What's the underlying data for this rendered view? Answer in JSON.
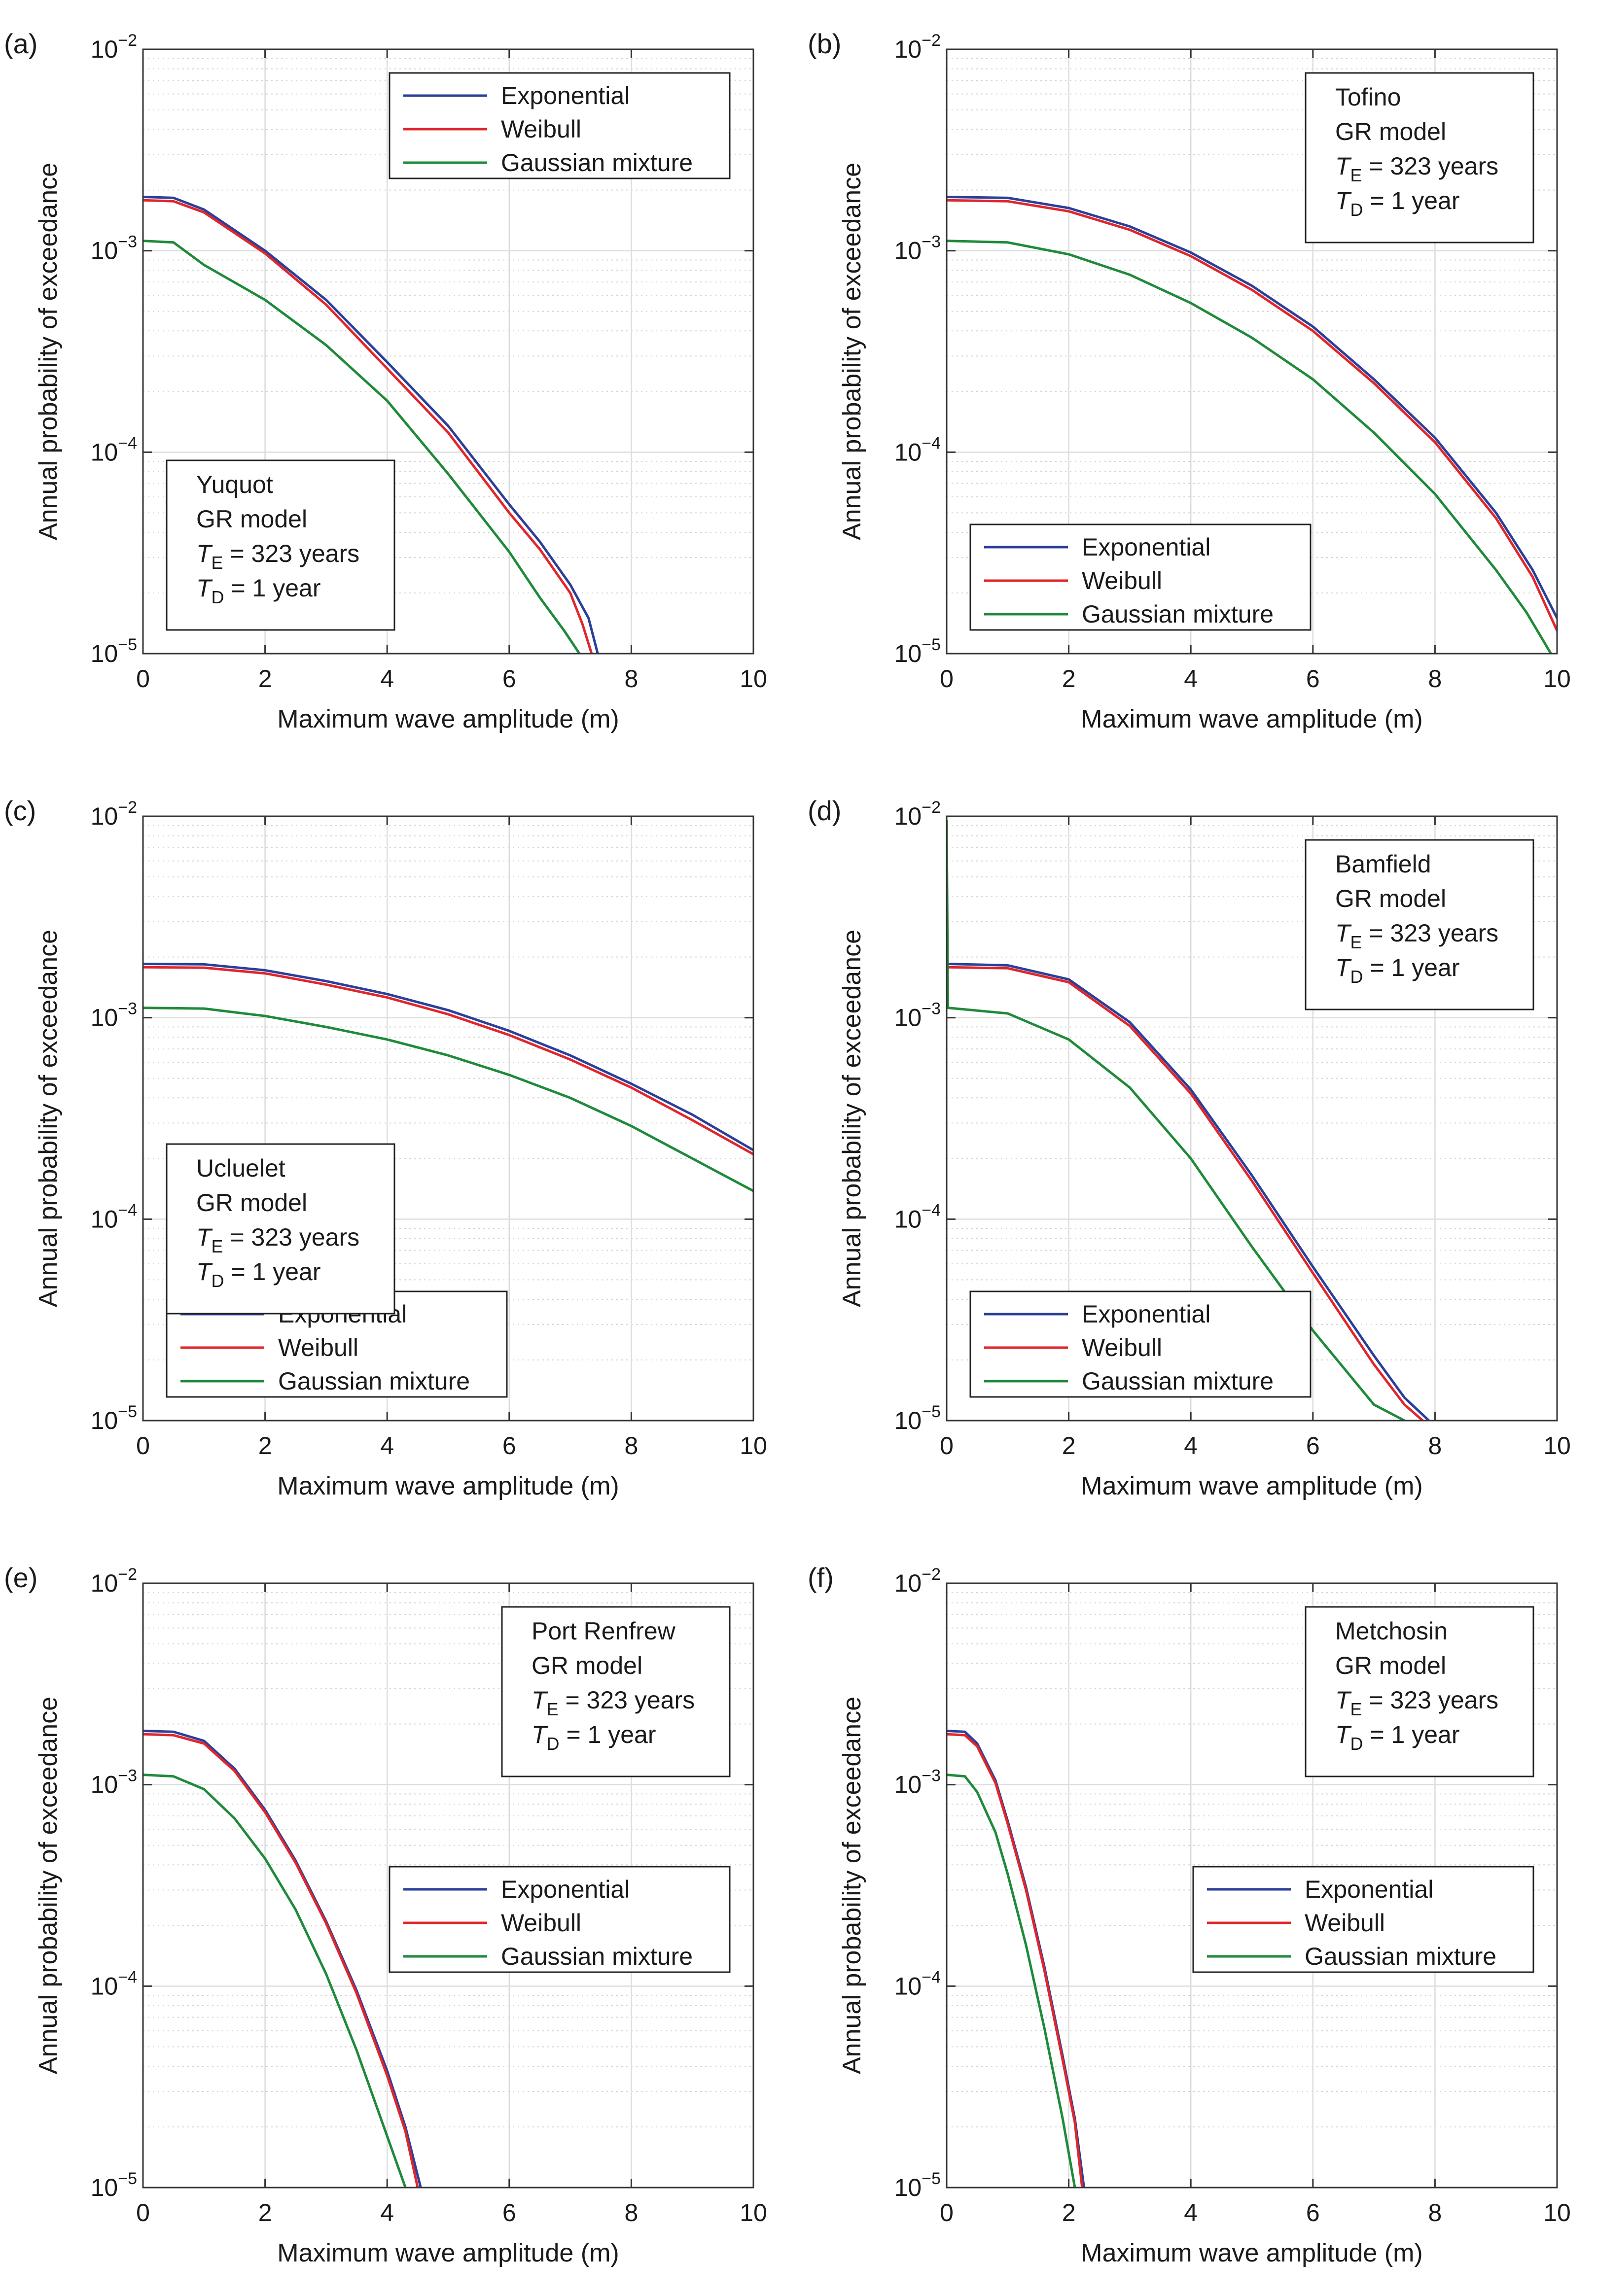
{
  "figure": {
    "x_axis_label": "Maximum wave amplitude (m)",
    "y_axis_label": "Annual probability of exceedance",
    "x_tick_labels": [
      "0",
      "2",
      "4",
      "6",
      "8",
      "10"
    ],
    "y_tick_labels": [
      {
        "base": "10",
        "exp": "−5"
      },
      {
        "base": "10",
        "exp": "−4"
      },
      {
        "base": "10",
        "exp": "−3"
      },
      {
        "base": "10",
        "exp": "−2"
      }
    ],
    "series_colors": {
      "Exponential": "#2b3f9a",
      "Weibull": "#e0262b",
      "Gaussian mixture": "#1f8a3a"
    },
    "legend_entries": [
      "Exponential",
      "Weibull",
      "Gaussian mixture"
    ],
    "model_text": "GR model",
    "te_symbol": "T",
    "te_sub": "E",
    "te_value": " = 323 years",
    "td_symbol": "T",
    "td_sub": "D",
    "td_value": " = 1 year"
  },
  "chart_data": [
    {
      "type": "line",
      "panel_label": "(a)",
      "site": "Yuquot",
      "xlabel": "Maximum wave amplitude (m)",
      "ylabel": "Annual probability of exceedance",
      "xlim": [
        0,
        10
      ],
      "ylim": [
        1e-05,
        0.01
      ],
      "yscale": "log",
      "grid": true,
      "legend_position": "top-right",
      "infobox_position": "bottom-left",
      "series": [
        {
          "name": "Exponential",
          "x": [
            0,
            0.5,
            1,
            2,
            3,
            4,
            5,
            6,
            6.5,
            7,
            7.3,
            7.45
          ],
          "y": [
            0.00185,
            0.00183,
            0.0016,
            0.001,
            0.00057,
            0.00028,
            0.000135,
            5.5e-05,
            3.6e-05,
            2.2e-05,
            1.5e-05,
            1e-05
          ]
        },
        {
          "name": "Weibull",
          "x": [
            0,
            0.5,
            1,
            2,
            3,
            4,
            5,
            6,
            6.5,
            7,
            7.2,
            7.35
          ],
          "y": [
            0.00178,
            0.00176,
            0.00155,
            0.00097,
            0.00054,
            0.00026,
            0.000125,
            5e-05,
            3.3e-05,
            2e-05,
            1.4e-05,
            1e-05
          ]
        },
        {
          "name": "Gaussian mixture",
          "x": [
            0,
            0.5,
            1,
            2,
            3,
            4,
            5,
            6,
            6.5,
            6.9,
            7.15
          ],
          "y": [
            0.00112,
            0.0011,
            0.00085,
            0.00057,
            0.00034,
            0.00018,
            7.8e-05,
            3.2e-05,
            1.9e-05,
            1.3e-05,
            1e-05
          ]
        }
      ]
    },
    {
      "type": "line",
      "panel_label": "(b)",
      "site": "Tofino",
      "xlabel": "Maximum wave amplitude (m)",
      "ylabel": "Annual probability of exceedance",
      "xlim": [
        0,
        10
      ],
      "ylim": [
        1e-05,
        0.01
      ],
      "yscale": "log",
      "grid": true,
      "legend_position": "bottom-left",
      "infobox_position": "top-right",
      "series": [
        {
          "name": "Exponential",
          "x": [
            0,
            1,
            2,
            3,
            4,
            5,
            6,
            7,
            8,
            9,
            9.6,
            10
          ],
          "y": [
            0.00185,
            0.00183,
            0.00163,
            0.00132,
            0.00098,
            0.00067,
            0.00042,
            0.00023,
            0.000118,
            5e-05,
            2.6e-05,
            1.5e-05
          ]
        },
        {
          "name": "Weibull",
          "x": [
            0,
            1,
            2,
            3,
            4,
            5,
            6,
            7,
            8,
            9,
            9.6,
            10
          ],
          "y": [
            0.00178,
            0.00176,
            0.00157,
            0.00127,
            0.00094,
            0.00064,
            0.0004,
            0.00022,
            0.000112,
            4.7e-05,
            2.4e-05,
            1.3e-05
          ]
        },
        {
          "name": "Gaussian mixture",
          "x": [
            0,
            1,
            2,
            3,
            4,
            5,
            6,
            7,
            8,
            9,
            9.5,
            9.9
          ],
          "y": [
            0.00112,
            0.0011,
            0.00096,
            0.00076,
            0.00055,
            0.00037,
            0.00023,
            0.000125,
            6.2e-05,
            2.6e-05,
            1.6e-05,
            1e-05
          ]
        }
      ]
    },
    {
      "type": "line",
      "panel_label": "(c)",
      "site": "Ucluelet",
      "xlabel": "Maximum wave amplitude (m)",
      "ylabel": "Annual probability of exceedance",
      "xlim": [
        0,
        10
      ],
      "ylim": [
        1e-05,
        0.01
      ],
      "yscale": "log",
      "grid": true,
      "legend_position": "bottom-left",
      "infobox_position": "middle-left",
      "series": [
        {
          "name": "Exponential",
          "x": [
            0,
            1,
            2,
            3,
            4,
            5,
            6,
            7,
            8,
            9,
            10
          ],
          "y": [
            0.00185,
            0.00184,
            0.00172,
            0.00152,
            0.00131,
            0.00109,
            0.00086,
            0.00065,
            0.00047,
            0.00033,
            0.00022
          ]
        },
        {
          "name": "Weibull",
          "x": [
            0,
            1,
            2,
            3,
            4,
            5,
            6,
            7,
            8,
            9,
            10
          ],
          "y": [
            0.00178,
            0.00177,
            0.00166,
            0.00146,
            0.00126,
            0.00104,
            0.00082,
            0.00062,
            0.00045,
            0.00031,
            0.00021
          ]
        },
        {
          "name": "Gaussian mixture",
          "x": [
            0,
            1,
            2,
            3,
            4,
            5,
            6,
            7,
            8,
            9,
            10
          ],
          "y": [
            0.00112,
            0.00111,
            0.00102,
            0.0009,
            0.00078,
            0.00065,
            0.00052,
            0.0004,
            0.00029,
            0.0002,
            0.000138
          ]
        }
      ]
    },
    {
      "type": "line",
      "panel_label": "(d)",
      "site": "Bamfield",
      "xlabel": "Maximum wave amplitude (m)",
      "ylabel": "Annual probability of exceedance",
      "xlim": [
        0,
        10
      ],
      "ylim": [
        1e-05,
        0.01
      ],
      "yscale": "log",
      "grid": true,
      "legend_position": "bottom-left",
      "infobox_position": "top-right",
      "series": [
        {
          "name": "Exponential",
          "x": [
            0,
            1,
            2,
            3,
            4,
            5,
            6,
            7,
            7.5,
            7.9
          ],
          "y": [
            0.00185,
            0.00182,
            0.00155,
            0.00095,
            0.00044,
            0.000165,
            5.8e-05,
            2.1e-05,
            1.3e-05,
            1e-05
          ]
        },
        {
          "name": "Weibull",
          "x": [
            0,
            1,
            2,
            3,
            4,
            5,
            6,
            7,
            7.5,
            7.8
          ],
          "y": [
            0.00178,
            0.00176,
            0.0015,
            0.00091,
            0.00042,
            0.000155,
            5.4e-05,
            1.9e-05,
            1.2e-05,
            1e-05
          ]
        },
        {
          "name": "Gaussian mixture",
          "x": [
            0,
            0.02,
            1,
            2,
            3,
            4,
            5,
            6,
            7,
            7.5
          ],
          "y": [
            0.0095,
            0.00112,
            0.00105,
            0.00078,
            0.00045,
            0.0002,
            7.3e-05,
            2.8e-05,
            1.2e-05,
            1e-05
          ]
        }
      ]
    },
    {
      "type": "line",
      "panel_label": "(e)",
      "site": "Port Renfrew",
      "xlabel": "Maximum wave amplitude (m)",
      "ylabel": "Annual probability of exceedance",
      "xlim": [
        0,
        10
      ],
      "ylim": [
        1e-05,
        0.01
      ],
      "yscale": "log",
      "grid": true,
      "legend_position": "middle-right",
      "infobox_position": "top-right",
      "series": [
        {
          "name": "Exponential",
          "x": [
            0,
            0.5,
            1,
            1.5,
            2,
            2.5,
            3,
            3.5,
            4,
            4.3,
            4.55
          ],
          "y": [
            0.00185,
            0.00183,
            0.00165,
            0.0012,
            0.00075,
            0.00042,
            0.00021,
            9.5e-05,
            3.8e-05,
            2e-05,
            1e-05
          ]
        },
        {
          "name": "Weibull",
          "x": [
            0,
            0.5,
            1,
            1.5,
            2,
            2.5,
            3,
            3.5,
            4,
            4.3,
            4.5
          ],
          "y": [
            0.00178,
            0.00176,
            0.0016,
            0.00117,
            0.00073,
            0.00041,
            0.000205,
            9.2e-05,
            3.6e-05,
            1.9e-05,
            1e-05
          ]
        },
        {
          "name": "Gaussian mixture",
          "x": [
            0,
            0.5,
            1,
            1.5,
            2,
            2.5,
            3,
            3.5,
            4,
            4.3
          ],
          "y": [
            0.00112,
            0.0011,
            0.00095,
            0.00068,
            0.00043,
            0.00024,
            0.000115,
            4.8e-05,
            1.8e-05,
            1e-05
          ]
        }
      ]
    },
    {
      "type": "line",
      "panel_label": "(f)",
      "site": "Metchosin",
      "xlabel": "Maximum wave amplitude (m)",
      "ylabel": "Annual probability of exceedance",
      "xlim": [
        0,
        10
      ],
      "ylim": [
        1e-05,
        0.01
      ],
      "yscale": "log",
      "grid": true,
      "legend_position": "middle-right",
      "infobox_position": "top-right",
      "series": [
        {
          "name": "Exponential",
          "x": [
            0,
            0.3,
            0.5,
            0.8,
            1,
            1.3,
            1.6,
            1.9,
            2.1,
            2.25
          ],
          "y": [
            0.00185,
            0.00183,
            0.0016,
            0.00105,
            0.00066,
            0.00031,
            0.000125,
            4.5e-05,
            2.2e-05,
            1e-05
          ]
        },
        {
          "name": "Weibull",
          "x": [
            0,
            0.3,
            0.5,
            0.8,
            1,
            1.3,
            1.6,
            1.9,
            2.1,
            2.22
          ],
          "y": [
            0.00178,
            0.00176,
            0.00155,
            0.00102,
            0.00064,
            0.0003,
            0.00012,
            4.3e-05,
            2.1e-05,
            1e-05
          ]
        },
        {
          "name": "Gaussian mixture",
          "x": [
            0,
            0.3,
            0.5,
            0.8,
            1,
            1.3,
            1.6,
            1.9,
            2.1
          ],
          "y": [
            0.00112,
            0.0011,
            0.00092,
            0.00058,
            0.00036,
            0.00016,
            6.2e-05,
            2.2e-05,
            1e-05
          ]
        }
      ]
    }
  ]
}
